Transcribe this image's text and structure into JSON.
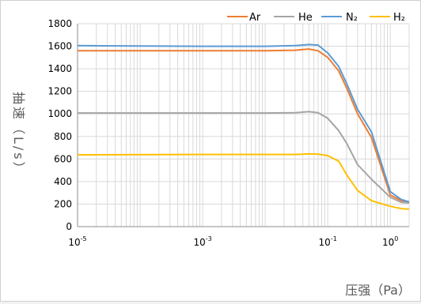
{
  "chart_data": {
    "type": "line",
    "title": "",
    "xlabel": "压强（Pa）",
    "ylabel": "抽速（L/s）",
    "xscale": "log",
    "xlim": [
      1e-05,
      2
    ],
    "ylim": [
      0,
      1800
    ],
    "yticks": [
      0,
      200,
      400,
      600,
      800,
      1000,
      1200,
      1400,
      1600,
      1800
    ],
    "xtick_labels": [
      {
        "base": "10",
        "exp": "-5",
        "x": 1e-05
      },
      {
        "base": "10",
        "exp": "-3",
        "x": 0.001
      },
      {
        "base": "10",
        "exp": "-1",
        "x": 0.1
      },
      {
        "base": "10",
        "exp": "0",
        "x": 1
      }
    ],
    "grid": true,
    "legend_position": "top-right",
    "series": [
      {
        "name": "Ar",
        "color": "#ED7D31",
        "x": [
          1e-05,
          0.001,
          0.01,
          0.03,
          0.05,
          0.07,
          0.1,
          0.15,
          0.2,
          0.3,
          0.5,
          1,
          1.5,
          2
        ],
        "y": [
          1560,
          1560,
          1560,
          1565,
          1575,
          1560,
          1500,
          1380,
          1230,
          1000,
          790,
          280,
          230,
          215
        ]
      },
      {
        "name": "He",
        "color": "#A5A5A5",
        "x": [
          1e-05,
          0.001,
          0.01,
          0.03,
          0.05,
          0.07,
          0.1,
          0.15,
          0.2,
          0.3,
          0.5,
          1,
          1.5,
          2
        ],
        "y": [
          1008,
          1008,
          1008,
          1010,
          1020,
          1010,
          960,
          850,
          740,
          550,
          420,
          260,
          215,
          210
        ]
      },
      {
        "name": "N₂",
        "color": "#5B9BD5",
        "x": [
          1e-05,
          0.001,
          0.01,
          0.03,
          0.05,
          0.07,
          0.1,
          0.15,
          0.2,
          0.3,
          0.5,
          1,
          1.5,
          2
        ],
        "y": [
          1605,
          1600,
          1600,
          1605,
          1615,
          1610,
          1540,
          1420,
          1270,
          1040,
          840,
          310,
          240,
          220
        ]
      },
      {
        "name": "H₂",
        "color": "#FFC000",
        "x": [
          1e-05,
          0.001,
          0.01,
          0.03,
          0.05,
          0.07,
          0.1,
          0.15,
          0.2,
          0.3,
          0.5,
          1,
          1.5,
          2
        ],
        "y": [
          637,
          640,
          640,
          640,
          645,
          643,
          630,
          580,
          460,
          320,
          230,
          180,
          160,
          155
        ]
      }
    ]
  }
}
